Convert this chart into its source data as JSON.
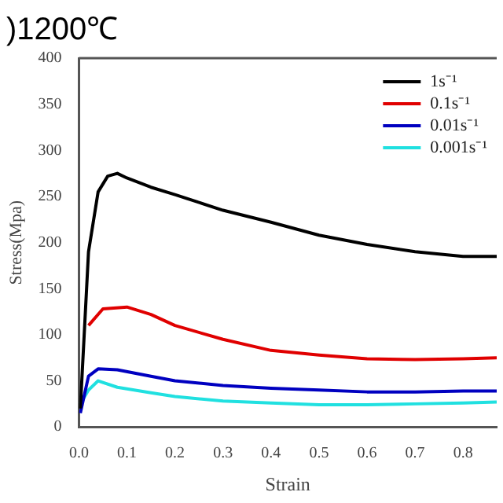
{
  "chart_data": {
    "type": "line",
    "title": ")1200℃",
    "xlabel": "Strain",
    "ylabel": "Stress(Mpa)",
    "xlim": [
      0,
      0.87
    ],
    "xticks": [
      {
        "value": 0,
        "label": "0.0"
      },
      0.1,
      0.2,
      0.3,
      0.4,
      0.5,
      0.6,
      0.7,
      0.8
    ],
    "ylim": [
      0,
      400
    ],
    "yticks": [
      0,
      50,
      100,
      150,
      200,
      250,
      300,
      350,
      400
    ],
    "grid": false,
    "legend": "top right",
    "marker": "none",
    "line_style": "solid",
    "series": [
      {
        "name": "1s⁻¹",
        "color": "#000000",
        "x": [
          0.003,
          0.02,
          0.04,
          0.06,
          0.08,
          0.1,
          0.15,
          0.2,
          0.3,
          0.4,
          0.5,
          0.6,
          0.7,
          0.8,
          0.87
        ],
        "values": [
          20,
          190,
          255,
          272,
          275,
          270,
          260,
          252,
          235,
          222,
          208,
          198,
          190,
          185,
          185
        ]
      },
      {
        "name": "0.1s⁻¹",
        "color": "#e00000",
        "x": [
          0.02,
          0.05,
          0.1,
          0.15,
          0.2,
          0.3,
          0.4,
          0.5,
          0.6,
          0.7,
          0.8,
          0.87
        ],
        "values": [
          110,
          128,
          130,
          122,
          110,
          95,
          83,
          78,
          74,
          73,
          74,
          75
        ]
      },
      {
        "name": "0.01s⁻¹",
        "color": "#0000c0",
        "x": [
          0.003,
          0.02,
          0.04,
          0.08,
          0.15,
          0.2,
          0.3,
          0.4,
          0.5,
          0.6,
          0.7,
          0.8,
          0.87
        ],
        "values": [
          15,
          55,
          63,
          62,
          55,
          50,
          45,
          42,
          40,
          38,
          38,
          39,
          39
        ]
      },
      {
        "name": "0.001s⁻¹",
        "color": "#20e0e0",
        "x": [
          0.003,
          0.02,
          0.04,
          0.08,
          0.15,
          0.2,
          0.3,
          0.4,
          0.5,
          0.6,
          0.7,
          0.8,
          0.87
        ],
        "values": [
          25,
          40,
          50,
          43,
          37,
          33,
          28,
          26,
          24,
          24,
          25,
          26,
          27
        ]
      }
    ]
  }
}
